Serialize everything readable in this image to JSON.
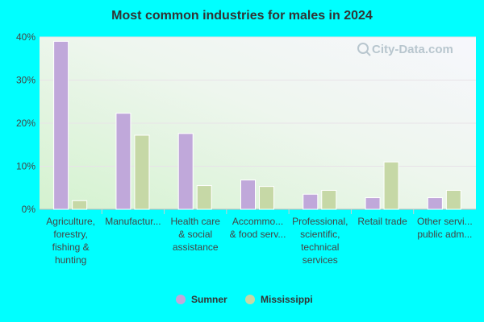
{
  "chart_data": {
    "type": "bar",
    "title": "Most common industries for males in 2024",
    "watermark": "City-Data.com",
    "categories": [
      [
        "Agriculture,",
        "forestry,",
        "fishing &",
        "hunting"
      ],
      [
        "Manufactur..."
      ],
      [
        "Health care",
        "& social",
        "assistance"
      ],
      [
        "Accommo...",
        "& food serv..."
      ],
      [
        "Professional,",
        "scientific,",
        "technical",
        "services"
      ],
      [
        "Retail trade"
      ],
      [
        "Other servi...",
        "public adm..."
      ]
    ],
    "series": [
      {
        "name": "Sumner",
        "color": "#c0a8da",
        "values": [
          39.0,
          22.3,
          17.6,
          6.8,
          3.5,
          2.7,
          2.7
        ]
      },
      {
        "name": "Mississippi",
        "color": "#c6d8a6",
        "values": [
          2.0,
          17.2,
          5.5,
          5.3,
          4.4,
          11.0,
          4.4
        ]
      }
    ],
    "y_ticks": [
      "0%",
      "10%",
      "20%",
      "30%",
      "40%"
    ],
    "ylim": [
      0,
      40
    ],
    "grid": true,
    "legend_position": "bottom"
  }
}
